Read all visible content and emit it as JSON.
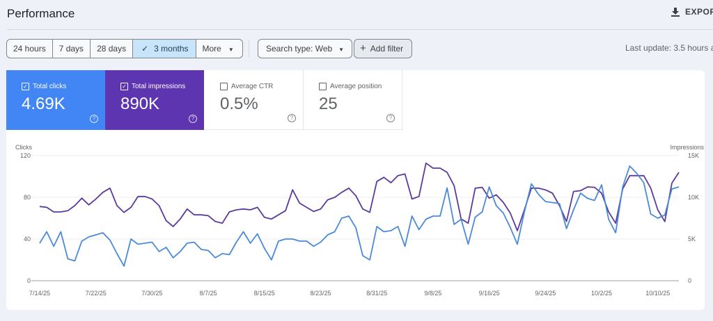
{
  "header": {
    "title": "Performance",
    "export_label": "EXPOR",
    "export_icon": "download-icon"
  },
  "filters": {
    "ranges": [
      "24 hours",
      "7 days",
      "28 days",
      "3 months",
      "More"
    ],
    "active_range": "3 months",
    "search_type": "Search type: Web",
    "add_filter": "Add filter",
    "last_update": "Last update: 3.5 hours a"
  },
  "metrics": [
    {
      "label": "Total clicks",
      "value": "4.69K",
      "checked": true,
      "color": "#4285f4"
    },
    {
      "label": "Total impressions",
      "value": "890K",
      "checked": true,
      "color": "#5e35b1"
    },
    {
      "label": "Average CTR",
      "value": "0.5%",
      "checked": false
    },
    {
      "label": "Average position",
      "value": "25",
      "checked": false
    }
  ],
  "chart_data": {
    "type": "line",
    "left_axis": {
      "label": "Clicks",
      "ticks": [
        "0",
        "40",
        "80",
        "120"
      ],
      "range": [
        0,
        120
      ]
    },
    "right_axis": {
      "label": "Impressions",
      "ticks": [
        "0",
        "5K",
        "10K",
        "15K"
      ],
      "range": [
        0,
        15000
      ]
    },
    "x_tick_labels": [
      "7/14/25",
      "7/22/25",
      "7/30/25",
      "8/7/25",
      "8/15/25",
      "8/23/25",
      "8/31/25",
      "9/8/25",
      "9/16/25",
      "9/24/25",
      "10/2/25",
      "10/10/25"
    ],
    "grid": true,
    "x": [
      "7/14/25",
      "7/15/25",
      "7/16/25",
      "7/17/25",
      "7/18/25",
      "7/19/25",
      "7/20/25",
      "7/21/25",
      "7/22/25",
      "7/23/25",
      "7/24/25",
      "7/25/25",
      "7/26/25",
      "7/27/25",
      "7/28/25",
      "7/29/25",
      "7/30/25",
      "7/31/25",
      "8/1/25",
      "8/2/25",
      "8/3/25",
      "8/4/25",
      "8/5/25",
      "8/6/25",
      "8/7/25",
      "8/8/25",
      "8/9/25",
      "8/10/25",
      "8/11/25",
      "8/12/25",
      "8/13/25",
      "8/14/25",
      "8/15/25",
      "8/16/25",
      "8/17/25",
      "8/18/25",
      "8/19/25",
      "8/20/25",
      "8/21/25",
      "8/22/25",
      "8/23/25",
      "8/24/25",
      "8/25/25",
      "8/26/25",
      "8/27/25",
      "8/28/25",
      "8/29/25",
      "8/30/25",
      "8/31/25",
      "9/1/25",
      "9/2/25",
      "9/3/25",
      "9/4/25",
      "9/5/25",
      "9/6/25",
      "9/7/25",
      "9/8/25",
      "9/9/25",
      "9/10/25",
      "9/11/25",
      "9/12/25",
      "9/13/25",
      "9/14/25",
      "9/15/25",
      "9/16/25",
      "9/17/25",
      "9/18/25",
      "9/19/25",
      "9/20/25",
      "9/21/25",
      "9/22/25",
      "9/23/25",
      "9/24/25",
      "9/25/25",
      "9/26/25",
      "9/27/25",
      "9/28/25",
      "9/29/25",
      "9/30/25",
      "10/1/25",
      "10/2/25",
      "10/3/25",
      "10/4/25",
      "10/5/25",
      "10/6/25",
      "10/7/25",
      "10/8/25",
      "10/9/25",
      "10/10/25",
      "10/11/25",
      "10/12/25",
      "10/13/25"
    ],
    "series": [
      {
        "name": "Clicks",
        "axis": "left",
        "color": "#4a8ad8",
        "values": [
          36,
          47,
          33,
          47,
          21,
          19,
          38,
          42,
          44,
          46,
          39,
          26,
          14,
          40,
          35,
          36,
          37,
          28,
          32,
          22,
          28,
          36,
          37,
          30,
          29,
          22,
          26,
          25,
          37,
          47,
          36,
          45,
          31,
          20,
          38,
          40,
          40,
          38,
          38,
          33,
          37,
          44,
          47,
          60,
          62,
          51,
          24,
          20,
          52,
          47,
          48,
          52,
          33,
          62,
          49,
          59,
          62,
          62,
          89,
          54,
          59,
          35,
          61,
          66,
          90,
          72,
          65,
          51,
          35,
          66,
          93,
          83,
          76,
          75,
          74,
          50,
          68,
          84,
          79,
          77,
          92,
          59,
          46,
          90,
          110,
          103,
          94,
          64,
          60,
          63,
          88,
          90
        ]
      },
      {
        "name": "Impressions",
        "axis": "right",
        "color": "#5b3a9e",
        "values": [
          8900,
          8800,
          8250,
          8250,
          8400,
          9000,
          9900,
          9100,
          9800,
          10600,
          11100,
          9000,
          8200,
          8800,
          10100,
          10100,
          9800,
          9000,
          7200,
          6500,
          7400,
          8600,
          7900,
          7900,
          7800,
          7100,
          6900,
          8250,
          8500,
          8600,
          8500,
          8800,
          7600,
          7400,
          7900,
          8400,
          10900,
          9300,
          8800,
          8300,
          8600,
          9700,
          10000,
          10600,
          11100,
          10200,
          8600,
          8200,
          11900,
          12400,
          11750,
          12600,
          12800,
          9800,
          10100,
          14100,
          13500,
          13500,
          13000,
          11400,
          7400,
          6900,
          11100,
          11200,
          9900,
          10300,
          9400,
          8100,
          6000,
          8500,
          11100,
          11100,
          10900,
          10500,
          9000,
          7100,
          10700,
          10800,
          11250,
          11200,
          10500,
          8250,
          6900,
          11000,
          12600,
          12600,
          12600,
          11100,
          8500,
          7100,
          11700,
          13000
        ]
      }
    ]
  }
}
